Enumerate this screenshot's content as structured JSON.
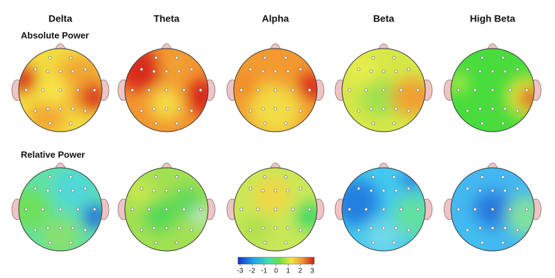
{
  "columns": [
    "Delta",
    "Theta",
    "Alpha",
    "Beta",
    "High Beta"
  ],
  "rows": [
    "Absolute Power",
    "Relative Power"
  ],
  "colorbar": {
    "ticks": [
      -3,
      -2,
      -1,
      0,
      1,
      2,
      3
    ]
  }
}
